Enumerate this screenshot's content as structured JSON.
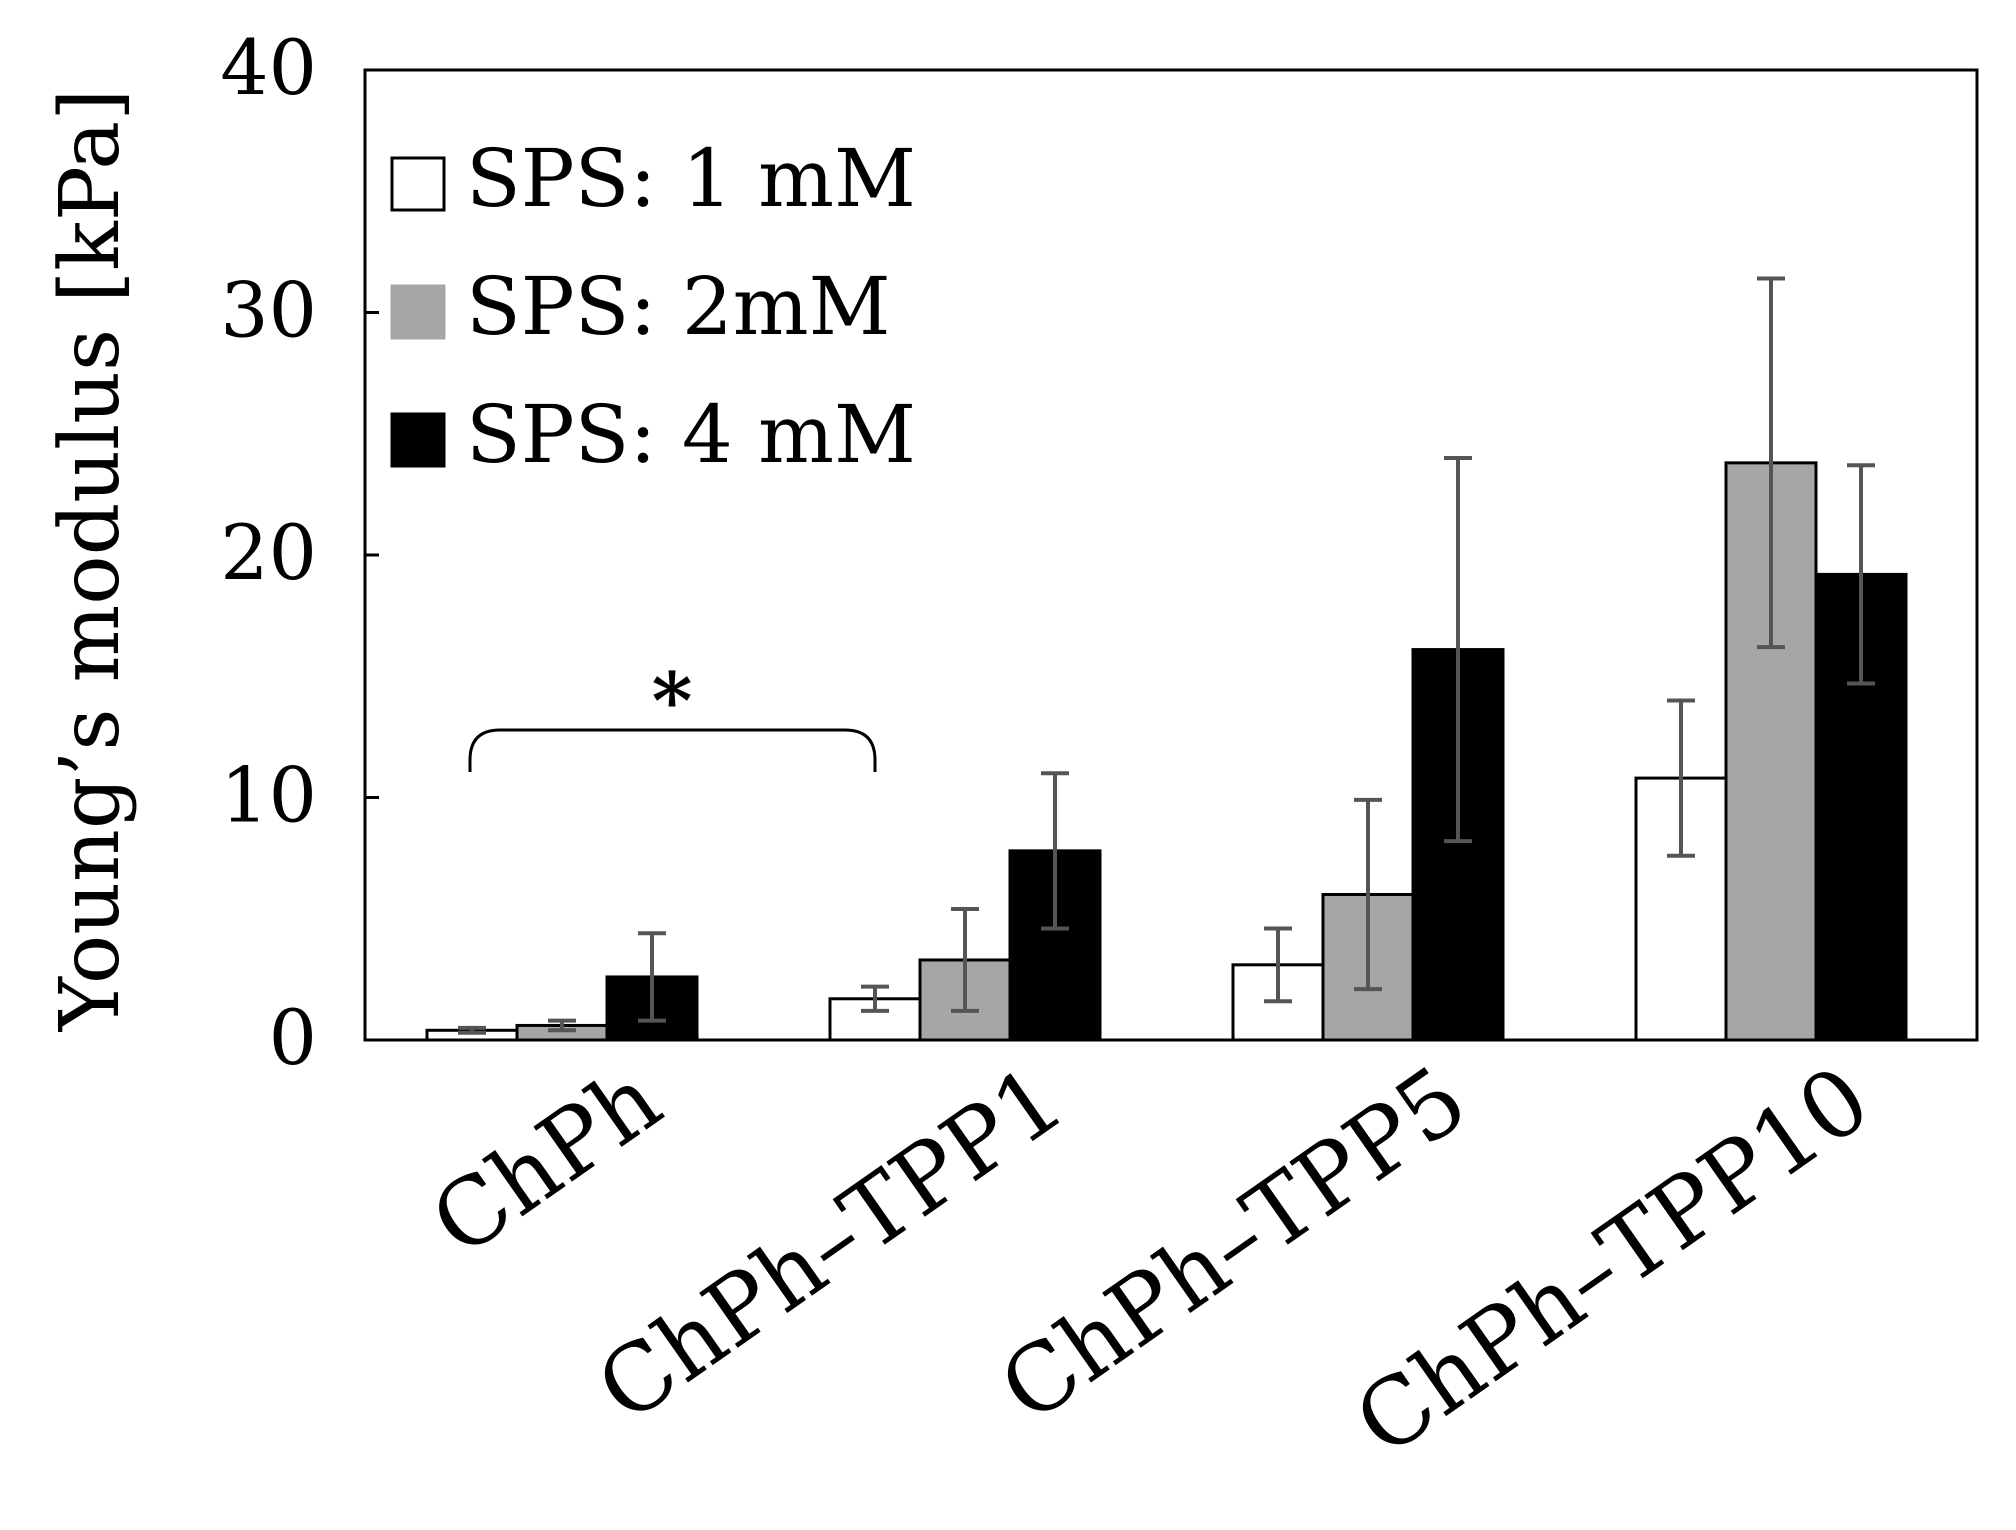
{
  "chart_data": {
    "type": "bar",
    "title": "",
    "xlabel": "",
    "ylabel": "Young’s modulus [kPa]",
    "ylim": [
      0,
      40
    ],
    "yticks": [
      "0",
      "10",
      "20",
      "30",
      "40"
    ],
    "categories": [
      "ChPh",
      "ChPh–TPP1",
      "ChPh–TPP5",
      "ChPh–TPP10"
    ],
    "series": [
      {
        "name": "SPS: 1 mM",
        "color": "#ffffff",
        "values": [
          0.4,
          1.7,
          3.1,
          10.8
        ],
        "errors": [
          0.1,
          0.5,
          1.5,
          3.2
        ]
      },
      {
        "name": "SPS: 2mM",
        "color": "#a6a6a6",
        "values": [
          0.6,
          3.3,
          6.0,
          23.8
        ],
        "errors": [
          0.2,
          2.1,
          3.9,
          7.6
        ]
      },
      {
        "name": "SPS: 4 mM",
        "color": "#000000",
        "values": [
          2.6,
          7.8,
          16.1,
          19.2
        ],
        "errors": [
          1.8,
          3.2,
          7.9,
          4.5
        ]
      }
    ],
    "legend_position": "top-left",
    "annotations": [
      {
        "text": "*",
        "type": "significance-bracket",
        "from": "ChPh",
        "to": "ChPh–TPP1"
      }
    ]
  }
}
